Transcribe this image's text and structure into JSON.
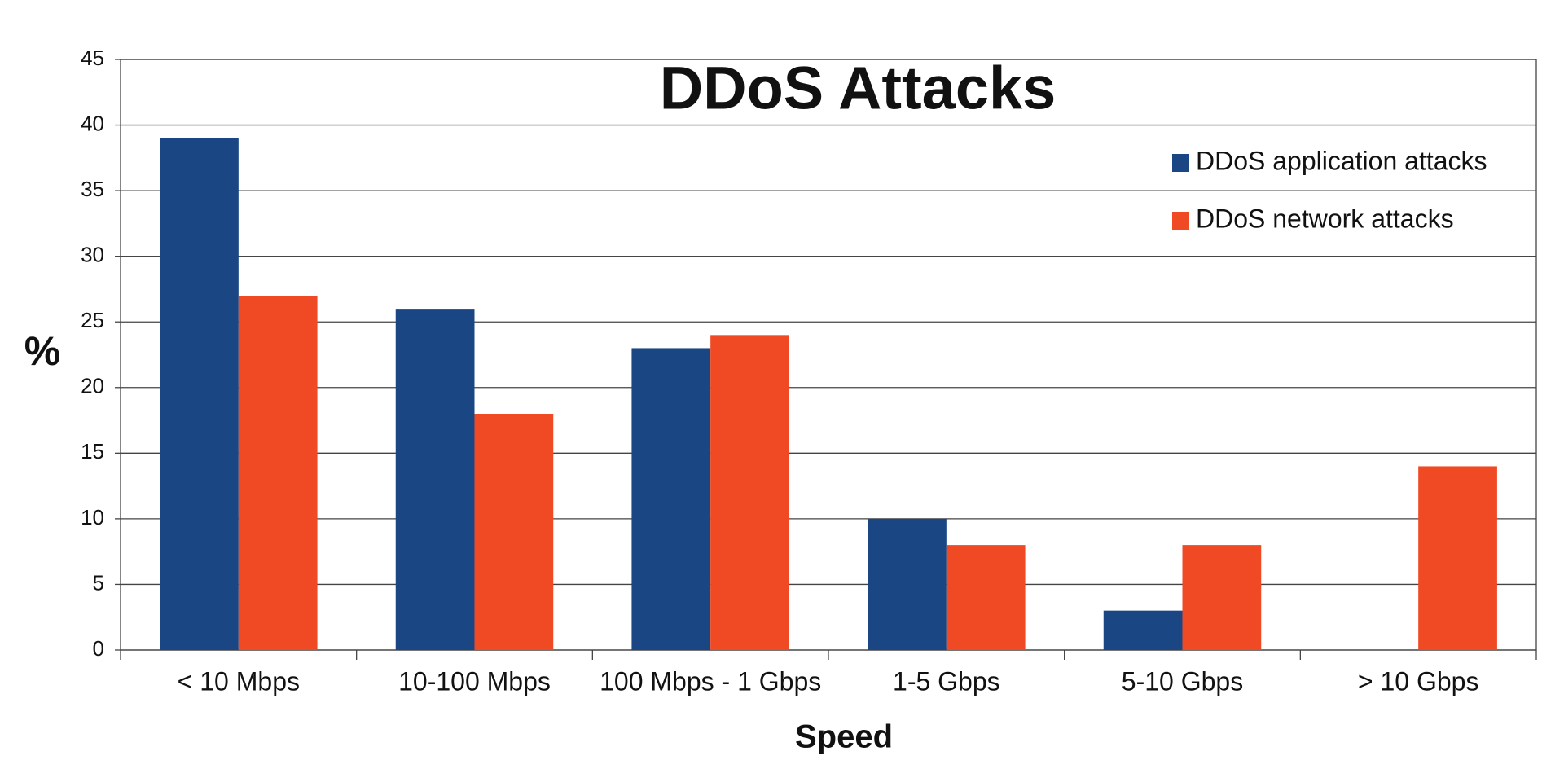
{
  "chart_data": {
    "type": "bar",
    "title": "DDoS Attacks",
    "x_label": "Speed",
    "y_label": "%",
    "categories": [
      "< 10 Mbps",
      "10-100 Mbps",
      "100 Mbps - 1 Gbps",
      "1-5 Gbps",
      "5-10 Gbps",
      "> 10 Gbps"
    ],
    "series": [
      {
        "name": "DDoS application attacks",
        "color": "#1a4784",
        "values": [
          39,
          26,
          23,
          10,
          3,
          0
        ]
      },
      {
        "name": "DDoS network attacks",
        "color": "#f04a24",
        "values": [
          27,
          18,
          24,
          8,
          8,
          14
        ]
      }
    ],
    "ylim": [
      0,
      45
    ],
    "yticks": [
      0,
      5,
      10,
      15,
      20,
      25,
      30,
      35,
      40,
      45
    ],
    "grid": true,
    "legend": "upper right"
  }
}
